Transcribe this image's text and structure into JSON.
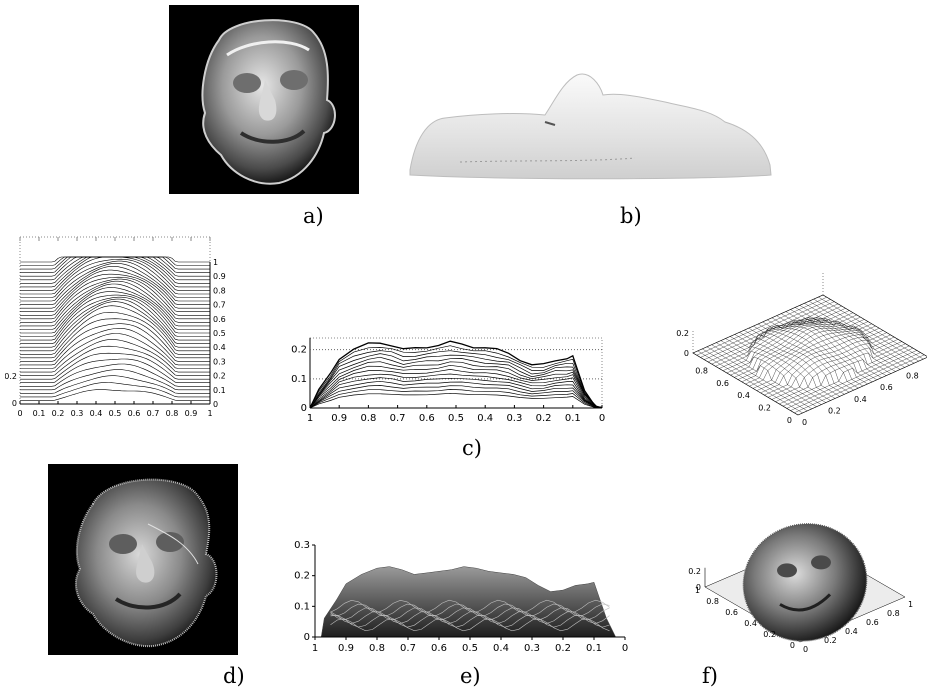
{
  "captions": {
    "a": "a)",
    "b": "b)",
    "c": "c)",
    "d": "d)",
    "e": "e)",
    "f": "f)"
  },
  "chart_data": [
    {
      "type": "line",
      "panel": "c-left",
      "x_ticks": [
        "0",
        "0.1",
        "0.2",
        "0.3",
        "0.4",
        "0.5",
        "0.6",
        "0.7",
        "0.8",
        "0.9",
        "1"
      ],
      "y_ticks_right": [
        "0",
        "0.1",
        "0.2",
        "0.3",
        "0.4",
        "0.5",
        "0.6",
        "0.7",
        "0.8",
        "0.9",
        "1"
      ],
      "y_ticks_left": [
        "0",
        "0.2"
      ]
    },
    {
      "type": "line",
      "panel": "c-middle",
      "x_ticks": [
        "1",
        "0.9",
        "0.8",
        "0.7",
        "0.6",
        "0.5",
        "0.4",
        "0.3",
        "0.2",
        "0.1",
        "0"
      ],
      "y_ticks": [
        "0",
        "0.1",
        "0.2"
      ],
      "xlim": [
        1,
        0
      ],
      "ylim": [
        0,
        0.24
      ],
      "profile": {
        "x": [
          1,
          0.97,
          0.93,
          0.9,
          0.85,
          0.8,
          0.76,
          0.72,
          0.68,
          0.64,
          0.6,
          0.56,
          0.52,
          0.48,
          0.44,
          0.4,
          0.36,
          0.32,
          0.28,
          0.24,
          0.2,
          0.16,
          0.12,
          0.1,
          0.06,
          0.02,
          0
        ],
        "y": [
          0,
          0.06,
          0.12,
          0.17,
          0.2,
          0.22,
          0.225,
          0.215,
          0.2,
          0.205,
          0.21,
          0.215,
          0.225,
          0.22,
          0.21,
          0.205,
          0.2,
          0.19,
          0.165,
          0.145,
          0.15,
          0.165,
          0.17,
          0.175,
          0.06,
          0.005,
          0
        ]
      }
    },
    {
      "type": "area",
      "panel": "c-right",
      "z_ticks": [
        "0",
        "0.2"
      ],
      "x_ticks": [
        "0",
        "0.2",
        "0.4",
        "0.6",
        "0.8"
      ],
      "y_ticks": [
        "0",
        "0.2",
        "0.4",
        "0.6",
        "0.8"
      ]
    },
    {
      "type": "area",
      "panel": "e",
      "x_ticks": [
        "1",
        "0.9",
        "0.8",
        "0.7",
        "0.6",
        "0.5",
        "0.4",
        "0.3",
        "0.2",
        "0.1",
        "0"
      ],
      "y_ticks": [
        "0",
        "0.1",
        "0.2",
        "0.3"
      ],
      "xlim": [
        1,
        0
      ],
      "ylim": [
        0,
        0.3
      ]
    },
    {
      "type": "area",
      "panel": "f",
      "z_ticks": [
        "0",
        "0.2"
      ],
      "x_ticks": [
        "0",
        "0.2",
        "0.4",
        "0.6",
        "0.8",
        "1"
      ],
      "y_ticks": [
        "0",
        "0.2",
        "0.4",
        "0.6",
        "0.8",
        "1"
      ]
    }
  ]
}
